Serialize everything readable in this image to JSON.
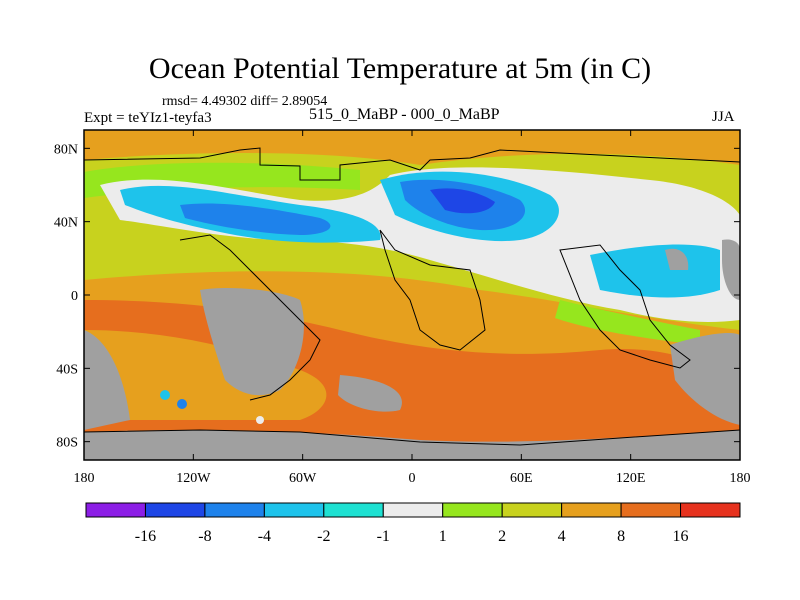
{
  "title": "Ocean Potential Temperature at 5m (in C)",
  "stats": "rmsd= 4.49302 diff= 2.89054",
  "experiment": "Expt = teYIz1-teyfa3",
  "subtitle": "515_0_MaBP - 000_0_MaBP",
  "season": "JJA",
  "map": {
    "lat_labels": [
      {
        "text": "80N",
        "value": 80
      },
      {
        "text": "40N",
        "value": 40
      },
      {
        "text": "0",
        "value": 0
      },
      {
        "text": "40S",
        "value": -40
      },
      {
        "text": "80S",
        "value": -80
      }
    ],
    "lon_labels": [
      {
        "text": "180",
        "value": -180
      },
      {
        "text": "120W",
        "value": -120
      },
      {
        "text": "60W",
        "value": -60
      },
      {
        "text": "0",
        "value": 0
      },
      {
        "text": "60E",
        "value": 60
      },
      {
        "text": "120E",
        "value": 120
      },
      {
        "text": "180",
        "value": 180
      }
    ],
    "lat_range": [
      -90,
      90
    ],
    "lon_range": [
      -180,
      180
    ]
  },
  "colorbar": {
    "labels": [
      "-16",
      "-8",
      "-4",
      "-2",
      "-1",
      "1",
      "2",
      "4",
      "8",
      "16"
    ],
    "colors": [
      "#8c1ee6",
      "#1e46e6",
      "#1e82eb",
      "#1ec3eb",
      "#1ee1d2",
      "#ececec",
      "#96e61e",
      "#c8d21e",
      "#e6a01e",
      "#e66e1e",
      "#e6321e"
    ]
  },
  "palette": {
    "land": "#a0a0a0",
    "warm_orange": "#e6a01e",
    "warm_deep": "#e66e1e",
    "yellow": "#c8d21e",
    "green": "#96e61e",
    "neutral": "#ececec",
    "cyan": "#1ec3eb",
    "blue": "#1e82eb",
    "deep_blue": "#1e46e6"
  }
}
